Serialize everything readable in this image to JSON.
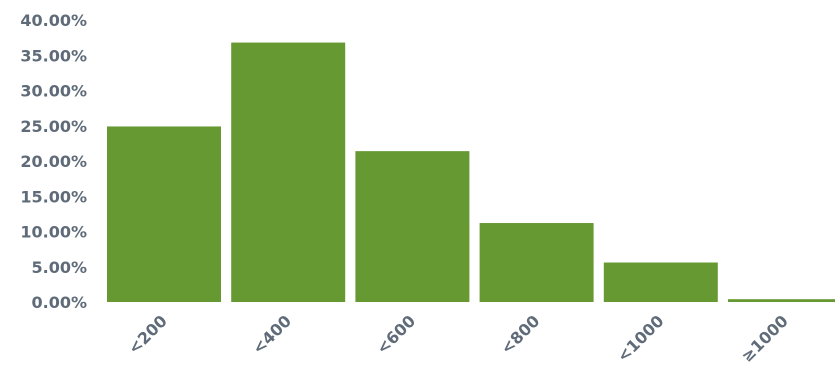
{
  "chart_data": {
    "type": "bar",
    "title": "",
    "xlabel": "",
    "ylabel": "",
    "categories": [
      "<200",
      "<400",
      "<600",
      "<800",
      "<1000",
      "≥1000"
    ],
    "values": [
      24.9,
      36.8,
      21.4,
      11.2,
      5.6,
      0.4
    ],
    "ylim": [
      0,
      40
    ],
    "y_ticks": [
      0,
      5,
      10,
      15,
      20,
      25,
      30,
      35,
      40
    ],
    "y_tick_labels": [
      "0.00%",
      "5.00%",
      "10.00%",
      "15.00%",
      "20.00%",
      "25.00%",
      "30.00%",
      "35.00%",
      "40.00%"
    ],
    "grid": false,
    "legend": "none",
    "colors": {
      "bar": "#679933",
      "tick_text": "#5f6b78"
    }
  }
}
